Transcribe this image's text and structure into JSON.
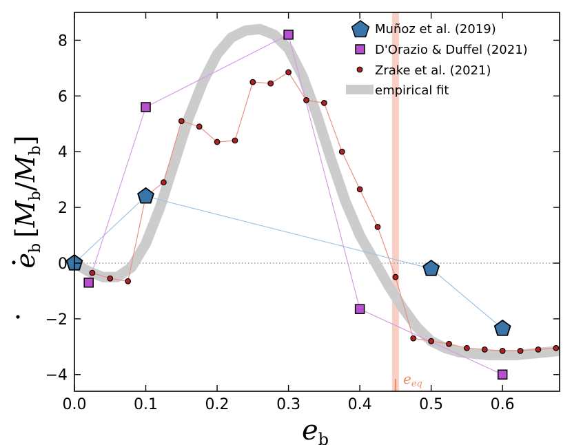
{
  "chart_data": {
    "type": "line",
    "title": "",
    "xlabel": "e_b",
    "ylabel": "ė_b [Ṁ_b / M_b]",
    "xlabel_parts": {
      "main": "e",
      "sub": "b"
    },
    "ylabel_parts": {
      "main": "e",
      "sub": "b",
      "bracket_open": "[",
      "bracket_close": "]",
      "num": "M",
      "num_sub": "b",
      "slash": "/",
      "den": "M",
      "den_sub": "b"
    },
    "xlim": [
      0.0,
      0.68
    ],
    "ylim": [
      -4.6,
      9.0
    ],
    "xticks": [
      0.0,
      0.1,
      0.2,
      0.3,
      0.4,
      0.5,
      0.6
    ],
    "xtick_labels": [
      "0.0",
      "0.1",
      "0.2",
      "0.3",
      "0.4",
      "0.5",
      "0.6"
    ],
    "yticks": [
      -4,
      -2,
      0,
      2,
      4,
      6,
      8
    ],
    "ytick_labels": [
      "−4",
      "−2",
      "0",
      "2",
      "4",
      "6",
      "8"
    ],
    "reference_lines": {
      "zero_line_y": 0,
      "equilibrium_x": 0.45,
      "equilibrium_label": "e",
      "equilibrium_label_sub": "eq",
      "equilibrium_color": "#f4a08a"
    },
    "legend_position": "top-right",
    "series": [
      {
        "name": "Muñoz et al. (2019)",
        "marker": "pentagon",
        "color": "#3a75aa",
        "line_color": "#9ec3e6",
        "x": [
          0.0,
          0.1,
          0.5,
          0.6
        ],
        "y": [
          0.0,
          2.4,
          -0.2,
          -2.35
        ]
      },
      {
        "name": "D'Orazio & Duffel (2021)",
        "marker": "square",
        "color": "#b84fcf",
        "line_color": "#d79ae6",
        "x": [
          0.02,
          0.1,
          0.3,
          0.4,
          0.6
        ],
        "y": [
          -0.7,
          5.6,
          8.2,
          -1.65,
          -4.0
        ]
      },
      {
        "name": "Zrake et al. (2021)",
        "marker": "circle",
        "color": "#b22222",
        "line_color": "#e89080",
        "x": [
          0.025,
          0.05,
          0.075,
          0.1,
          0.125,
          0.15,
          0.175,
          0.2,
          0.225,
          0.25,
          0.275,
          0.3,
          0.325,
          0.35,
          0.375,
          0.4,
          0.425,
          0.45,
          0.475,
          0.5,
          0.525,
          0.55,
          0.575,
          0.6,
          0.625,
          0.65,
          0.675
        ],
        "y": [
          -0.35,
          -0.55,
          -0.65,
          2.4,
          2.9,
          5.1,
          4.9,
          4.35,
          4.4,
          6.5,
          6.45,
          6.85,
          5.85,
          5.75,
          4.0,
          2.65,
          1.3,
          -0.5,
          -2.7,
          -2.8,
          -2.9,
          -3.05,
          -3.1,
          -3.15,
          -3.15,
          -3.1,
          -3.05
        ]
      },
      {
        "name": "empirical fit",
        "marker": "none",
        "color": "#cccccc",
        "line_color": "#cccccc",
        "x": [
          0.0,
          0.02,
          0.04,
          0.06,
          0.08,
          0.1,
          0.12,
          0.14,
          0.16,
          0.18,
          0.2,
          0.22,
          0.24,
          0.26,
          0.28,
          0.3,
          0.32,
          0.34,
          0.36,
          0.38,
          0.4,
          0.42,
          0.44,
          0.46,
          0.48,
          0.5,
          0.52,
          0.54,
          0.56,
          0.58,
          0.6,
          0.62,
          0.64,
          0.66,
          0.68
        ],
        "y": [
          0.0,
          -0.3,
          -0.5,
          -0.5,
          -0.15,
          0.7,
          2.0,
          3.6,
          5.2,
          6.5,
          7.5,
          8.1,
          8.35,
          8.4,
          8.2,
          7.7,
          6.7,
          5.3,
          3.7,
          2.2,
          1.0,
          0.1,
          -0.8,
          -1.6,
          -2.3,
          -2.8,
          -3.05,
          -3.2,
          -3.25,
          -3.3,
          -3.3,
          -3.3,
          -3.25,
          -3.2,
          -3.15
        ]
      }
    ]
  }
}
